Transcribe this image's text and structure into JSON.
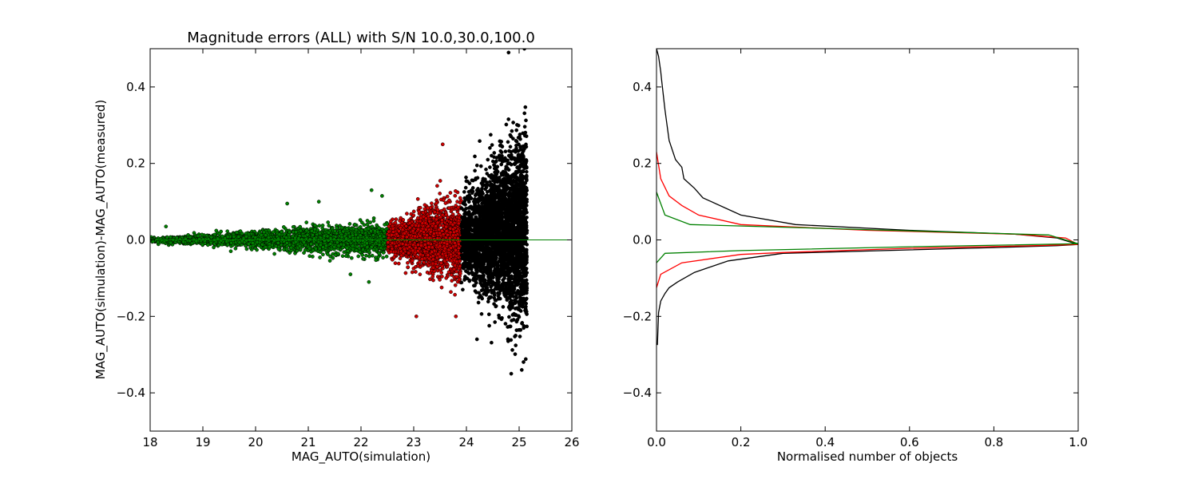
{
  "chart_data": [
    {
      "type": "scatter",
      "title": "Magnitude errors (ALL) with S/N 10.0,30.0,100.0",
      "xlabel": "MAG_AUTO(simulation)",
      "ylabel": "MAG_AUTO(simulation)-MAG_AUTO(measured)",
      "xlim": [
        18,
        26
      ],
      "ylim": [
        -0.5,
        0.5
      ],
      "xticks": [
        "18",
        "19",
        "20",
        "21",
        "22",
        "23",
        "24",
        "25",
        "26"
      ],
      "yticks": [
        "−0.4",
        "−0.2",
        "0.0",
        "0.2",
        "0.4"
      ],
      "grid": false,
      "reference_line": {
        "y": 0.0,
        "color": "#008000"
      },
      "series": [
        {
          "color": "#008000",
          "x_range": [
            18.0,
            22.5
          ],
          "sigma_at_edges": [
            0.004,
            0.032
          ],
          "count": 2600
        },
        {
          "color": "#cc0000",
          "x_range": [
            22.5,
            23.9
          ],
          "sigma_at_edges": [
            0.032,
            0.075
          ],
          "count": 2200
        },
        {
          "color": "#000000",
          "x_range": [
            23.9,
            25.15
          ],
          "sigma_at_edges": [
            0.075,
            0.19
          ],
          "count": 3200
        }
      ],
      "outliers": [
        {
          "x": 18.3,
          "y": 0.035,
          "color": "#008000"
        },
        {
          "x": 20.6,
          "y": 0.095,
          "color": "#008000"
        },
        {
          "x": 21.2,
          "y": 0.1,
          "color": "#008000"
        },
        {
          "x": 22.2,
          "y": 0.13,
          "color": "#008000"
        },
        {
          "x": 22.4,
          "y": 0.115,
          "color": "#008000"
        },
        {
          "x": 21.8,
          "y": -0.09,
          "color": "#008000"
        },
        {
          "x": 22.15,
          "y": -0.11,
          "color": "#008000"
        },
        {
          "x": 23.05,
          "y": -0.2,
          "color": "#cc0000"
        },
        {
          "x": 23.8,
          "y": -0.2,
          "color": "#cc0000"
        },
        {
          "x": 23.55,
          "y": 0.25,
          "color": "#cc0000"
        },
        {
          "x": 24.8,
          "y": 0.49,
          "color": "#000000"
        },
        {
          "x": 25.1,
          "y": 0.5,
          "color": "#000000"
        },
        {
          "x": 24.85,
          "y": -0.35,
          "color": "#000000"
        },
        {
          "x": 25.05,
          "y": -0.34,
          "color": "#000000"
        },
        {
          "x": 24.2,
          "y": -0.26,
          "color": "#000000"
        }
      ]
    },
    {
      "type": "line",
      "title": "",
      "xlabel": "Normalised number of objects",
      "ylabel": "",
      "xlim": [
        0.0,
        1.0
      ],
      "ylim": [
        -0.5,
        0.5
      ],
      "xticks": [
        "0.0",
        "0.2",
        "0.4",
        "0.6",
        "0.8",
        "1.0"
      ],
      "yticks": [
        "−0.4",
        "−0.2",
        "0.0",
        "0.2",
        "0.4"
      ],
      "grid": false,
      "series": [
        {
          "color": "#000000",
          "x": [
            0.0,
            0.005,
            0.01,
            0.012,
            0.02,
            0.025,
            0.03,
            0.045,
            0.06,
            0.065,
            0.09,
            0.11,
            0.2,
            0.33,
            0.6,
            0.85,
            0.95,
            1.0,
            0.95,
            0.8,
            0.6,
            0.3,
            0.17,
            0.09,
            0.05,
            0.03,
            0.02,
            0.01,
            0.005,
            0.002
          ],
          "y": [
            0.5,
            0.48,
            0.44,
            0.42,
            0.34,
            0.3,
            0.26,
            0.21,
            0.19,
            0.16,
            0.135,
            0.11,
            0.065,
            0.04,
            0.025,
            0.015,
            0.005,
            -0.012,
            -0.015,
            -0.02,
            -0.026,
            -0.035,
            -0.055,
            -0.085,
            -0.11,
            -0.125,
            -0.14,
            -0.16,
            -0.19,
            -0.275
          ]
        },
        {
          "color": "#ff0000",
          "x": [
            0.0,
            0.01,
            0.03,
            0.06,
            0.1,
            0.2,
            0.5,
            0.85,
            0.97,
            1.0,
            0.9,
            0.6,
            0.3,
            0.2,
            0.06,
            0.01,
            0.0
          ],
          "y": [
            0.23,
            0.16,
            0.115,
            0.09,
            0.065,
            0.04,
            0.025,
            0.015,
            0.005,
            -0.012,
            -0.015,
            -0.022,
            -0.033,
            -0.038,
            -0.06,
            -0.09,
            -0.125
          ]
        },
        {
          "color": "#008000",
          "x": [
            0.0,
            0.02,
            0.08,
            0.4,
            0.93,
            1.0,
            0.6,
            0.2,
            0.02,
            0.0
          ],
          "y": [
            0.125,
            0.065,
            0.04,
            0.03,
            0.013,
            -0.01,
            -0.018,
            -0.028,
            -0.035,
            -0.06
          ]
        }
      ]
    }
  ]
}
